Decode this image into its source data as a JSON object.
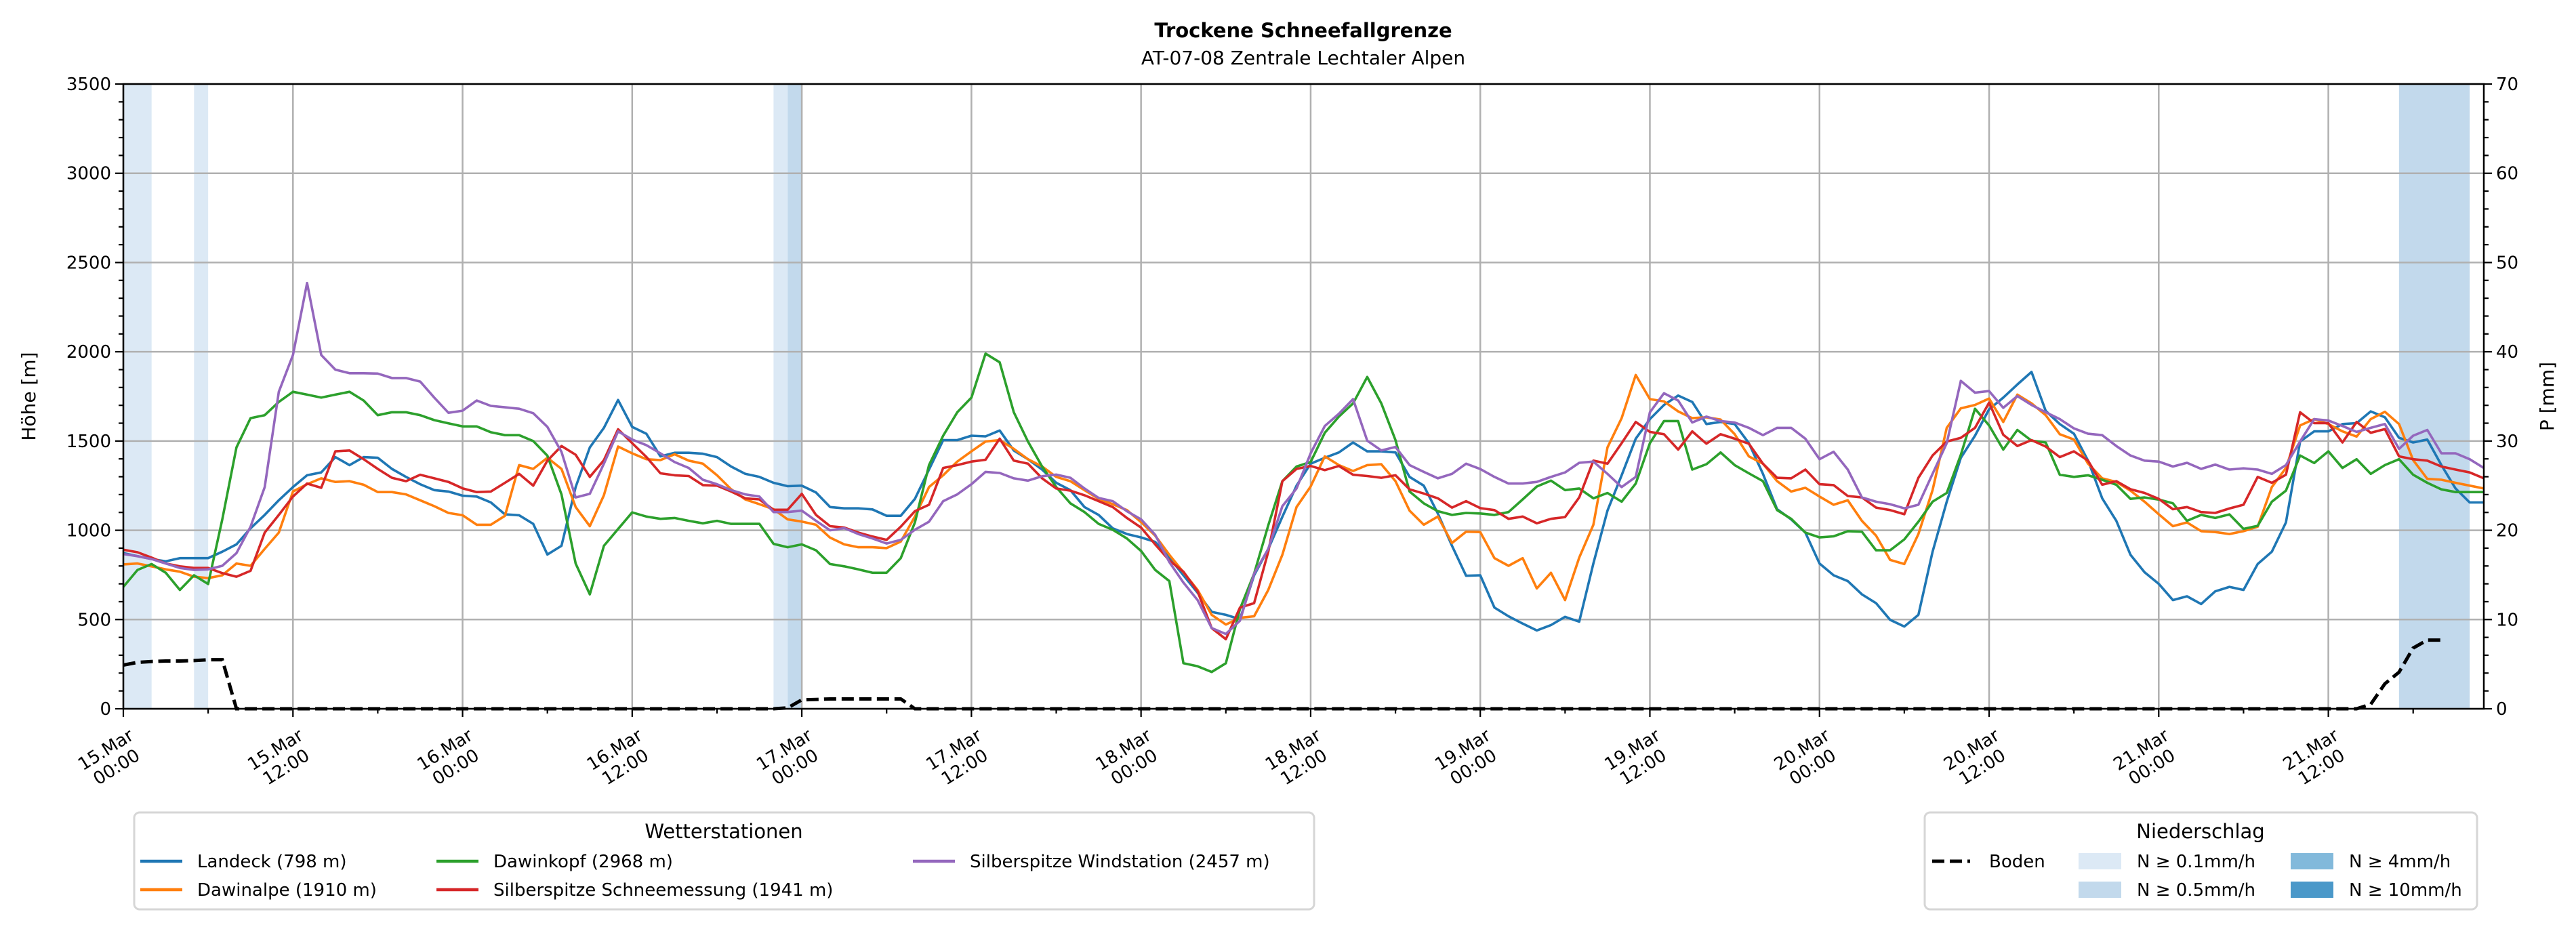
{
  "chart_data": {
    "type": "line",
    "title": "Trockene Schneefallgrenze",
    "subtitle": "AT-07-08 Zentrale Lechtaler Alpen",
    "ylabel": "Höhe [m]",
    "ylabel_right": "P [mm]",
    "x_start": "15.Mar 00:00",
    "x_step_hours": 1,
    "xlim_hours": [
      0,
      167
    ],
    "ylim": [
      0,
      3500
    ],
    "ylim_right": [
      0,
      70
    ],
    "grid": true,
    "yticks": [
      "0",
      "500",
      "1000",
      "1500",
      "2000",
      "2500",
      "3000",
      "3500"
    ],
    "yticks_right": [
      "0",
      "10",
      "20",
      "30",
      "40",
      "50",
      "60",
      "70"
    ],
    "xticks": [
      {
        "hour": 0,
        "day": "15.Mar",
        "time": "00:00"
      },
      {
        "hour": 12,
        "day": "15.Mar",
        "time": "12:00"
      },
      {
        "hour": 24,
        "day": "16.Mar",
        "time": "00:00"
      },
      {
        "hour": 36,
        "day": "16.Mar",
        "time": "12:00"
      },
      {
        "hour": 48,
        "day": "17.Mar",
        "time": "00:00"
      },
      {
        "hour": 60,
        "day": "17.Mar",
        "time": "12:00"
      },
      {
        "hour": 72,
        "day": "18.Mar",
        "time": "00:00"
      },
      {
        "hour": 84,
        "day": "18.Mar",
        "time": "12:00"
      },
      {
        "hour": 96,
        "day": "19.Mar",
        "time": "00:00"
      },
      {
        "hour": 108,
        "day": "19.Mar",
        "time": "12:00"
      },
      {
        "hour": 120,
        "day": "20.Mar",
        "time": "00:00"
      },
      {
        "hour": 132,
        "day": "20.Mar",
        "time": "12:00"
      },
      {
        "hour": 144,
        "day": "21.Mar",
        "time": "00:00"
      },
      {
        "hour": 156,
        "day": "21.Mar",
        "time": "12:00"
      }
    ],
    "series": [
      {
        "name": "Landeck (798 m)",
        "color": "#1f77b4",
        "values": [
          872,
          855,
          839,
          826,
          844,
          844,
          844,
          880,
          921,
          1011,
          1086,
          1168,
          1242,
          1308,
          1324,
          1410,
          1365,
          1410,
          1406,
          1344,
          1299,
          1258,
          1225,
          1217,
          1194,
          1189,
          1156,
          1089,
          1084,
          1036,
          864,
          913,
          1242,
          1464,
          1574,
          1730,
          1579,
          1541,
          1414,
          1434,
          1434,
          1429,
          1410,
          1357,
          1316,
          1299,
          1266,
          1247,
          1250,
          1212,
          1130,
          1123,
          1123,
          1117,
          1081,
          1081,
          1176,
          1340,
          1505,
          1505,
          1530,
          1526,
          1559,
          1447,
          1398,
          1340,
          1266,
          1225,
          1130,
          1086,
          1011,
          979,
          960,
          935,
          847,
          748,
          650,
          543,
          526,
          502,
          748,
          895,
          1076,
          1250,
          1373,
          1406,
          1436,
          1492,
          1442,
          1442,
          1436,
          1299,
          1250,
          1094,
          913,
          745,
          748,
          567,
          518,
          477,
          439,
          469,
          515,
          488,
          814,
          1110,
          1308,
          1513,
          1623,
          1702,
          1755,
          1719,
          1595,
          1607,
          1595,
          1488,
          1316,
          1118,
          1061,
          987,
          814,
          748,
          715,
          641,
          592,
          498,
          461,
          526,
          880,
          1160,
          1406,
          1530,
          1678,
          1743,
          1817,
          1887,
          1669,
          1595,
          1541,
          1390,
          1179,
          1053,
          863,
          765,
          700,
          609,
          630,
          587,
          658,
          683,
          666,
          811,
          880,
          1044,
          1497,
          1554,
          1554,
          1595,
          1600,
          1666,
          1633,
          1518,
          1492,
          1508,
          1365,
          1234,
          1156,
          1156
        ]
      },
      {
        "name": "Dawinalpe (1910 m)",
        "color": "#ff7f0e",
        "values": [
          809,
          814,
          798,
          781,
          768,
          740,
          732,
          748,
          814,
          801,
          896,
          987,
          1217,
          1258,
          1291,
          1271,
          1275,
          1255,
          1214,
          1214,
          1201,
          1168,
          1135,
          1097,
          1084,
          1031,
          1031,
          1081,
          1365,
          1344,
          1406,
          1344,
          1130,
          1023,
          1196,
          1469,
          1431,
          1398,
          1393,
          1426,
          1390,
          1373,
          1308,
          1230,
          1173,
          1146,
          1118,
          1061,
          1049,
          1031,
          959,
          921,
          905,
          905,
          900,
          937,
          1077,
          1242,
          1308,
          1385,
          1442,
          1497,
          1505,
          1456,
          1398,
          1357,
          1299,
          1275,
          1225,
          1176,
          1146,
          1113,
          1046,
          970,
          863,
          765,
          666,
          526,
          472,
          510,
          518,
          666,
          863,
          1130,
          1245,
          1414,
          1365,
          1332,
          1365,
          1370,
          1275,
          1110,
          1031,
          1077,
          929,
          992,
          990,
          844,
          801,
          844,
          674,
          762,
          609,
          847,
          1031,
          1464,
          1628,
          1870,
          1735,
          1722,
          1666,
          1628,
          1633,
          1620,
          1538,
          1414,
          1373,
          1275,
          1217,
          1238,
          1189,
          1143,
          1168,
          1053,
          970,
          834,
          811,
          979,
          1225,
          1574,
          1683,
          1702,
          1738,
          1607,
          1760,
          1711,
          1645,
          1538,
          1508,
          1373,
          1291,
          1271,
          1222,
          1160,
          1090,
          1023,
          1044,
          995,
          990,
          979,
          995,
          1020,
          1242,
          1349,
          1587,
          1623,
          1595,
          1554,
          1525,
          1623,
          1664,
          1595,
          1393,
          1288,
          1283,
          1266,
          1250,
          1234
        ]
      },
      {
        "name": "Dawinkopf (2968 m)",
        "color": "#2ca02c",
        "values": [
          683,
          778,
          811,
          762,
          666,
          748,
          699,
          1061,
          1464,
          1628,
          1645,
          1719,
          1776,
          1760,
          1743,
          1760,
          1776,
          1727,
          1645,
          1661,
          1661,
          1645,
          1617,
          1599,
          1582,
          1582,
          1549,
          1533,
          1533,
          1500,
          1418,
          1201,
          814,
          641,
          913,
          1007,
          1100,
          1077,
          1064,
          1069,
          1053,
          1039,
          1053,
          1036,
          1036,
          1036,
          924,
          905,
          921,
          888,
          811,
          798,
          781,
          762,
          762,
          844,
          1044,
          1365,
          1530,
          1661,
          1743,
          1990,
          1941,
          1661,
          1497,
          1357,
          1242,
          1151,
          1102,
          1036,
          1003,
          954,
          884,
          778,
          715,
          255,
          238,
          206,
          255,
          559,
          757,
          1028,
          1275,
          1357,
          1382,
          1546,
          1637,
          1711,
          1859,
          1711,
          1505,
          1217,
          1151,
          1107,
          1086,
          1097,
          1094,
          1086,
          1102,
          1173,
          1245,
          1278,
          1225,
          1234,
          1179,
          1209,
          1160,
          1262,
          1488,
          1612,
          1612,
          1340,
          1370,
          1436,
          1365,
          1319,
          1275,
          1113,
          1064,
          987,
          960,
          966,
          995,
          992,
          888,
          888,
          949,
          1048,
          1160,
          1209,
          1423,
          1681,
          1587,
          1452,
          1562,
          1502,
          1492,
          1311,
          1299,
          1308,
          1283,
          1255,
          1176,
          1184,
          1172,
          1151,
          1053,
          1086,
          1069,
          1089,
          1008,
          1025,
          1160,
          1222,
          1419,
          1377,
          1442,
          1349,
          1398,
          1316,
          1365,
          1398,
          1311,
          1266,
          1229,
          1214,
          1214,
          1214
        ]
      },
      {
        "name": "Silberspitze Schneemessung (1941 m)",
        "color": "#d62728",
        "values": [
          891,
          877,
          847,
          814,
          798,
          789,
          789,
          760,
          740,
          773,
          987,
          1086,
          1189,
          1262,
          1238,
          1442,
          1447,
          1398,
          1344,
          1294,
          1275,
          1311,
          1291,
          1271,
          1235,
          1214,
          1217,
          1266,
          1316,
          1250,
          1390,
          1472,
          1423,
          1299,
          1393,
          1566,
          1488,
          1411,
          1319,
          1308,
          1304,
          1253,
          1250,
          1217,
          1179,
          1173,
          1115,
          1115,
          1204,
          1086,
          1023,
          1015,
          987,
          965,
          946,
          1020,
          1107,
          1143,
          1349,
          1365,
          1385,
          1395,
          1513,
          1390,
          1373,
          1291,
          1234,
          1222,
          1196,
          1163,
          1130,
          1069,
          1015,
          921,
          831,
          768,
          658,
          452,
          390,
          567,
          592,
          880,
          1275,
          1344,
          1360,
          1337,
          1360,
          1311,
          1304,
          1294,
          1308,
          1229,
          1206,
          1179,
          1127,
          1163,
          1124,
          1113,
          1064,
          1077,
          1039,
          1064,
          1074,
          1184,
          1390,
          1373,
          1488,
          1607,
          1551,
          1538,
          1452,
          1554,
          1485,
          1538,
          1513,
          1485,
          1373,
          1294,
          1291,
          1340,
          1258,
          1253,
          1192,
          1184,
          1127,
          1113,
          1090,
          1294,
          1419,
          1497,
          1518,
          1574,
          1715,
          1535,
          1472,
          1505,
          1469,
          1410,
          1442,
          1390,
          1255,
          1275,
          1230,
          1209,
          1176,
          1118,
          1130,
          1102,
          1097,
          1122,
          1143,
          1299,
          1266,
          1311,
          1661,
          1600,
          1600,
          1492,
          1607,
          1546,
          1567,
          1414,
          1398,
          1390,
          1357,
          1340,
          1324,
          1291
        ]
      },
      {
        "name": "Silberspitze Windstation (2457 m)",
        "color": "#9467bd",
        "values": [
          867,
          855,
          839,
          814,
          789,
          778,
          781,
          801,
          872,
          1020,
          1242,
          1776,
          1982,
          2385,
          1982,
          1900,
          1880,
          1880,
          1878,
          1853,
          1853,
          1833,
          1743,
          1658,
          1670,
          1727,
          1697,
          1689,
          1681,
          1656,
          1579,
          1439,
          1184,
          1204,
          1373,
          1554,
          1508,
          1477,
          1431,
          1382,
          1349,
          1283,
          1258,
          1225,
          1201,
          1189,
          1102,
          1102,
          1110,
          1053,
          1000,
          1012,
          979,
          954,
          926,
          946,
          1003,
          1048,
          1163,
          1201,
          1258,
          1327,
          1321,
          1291,
          1278,
          1303,
          1312,
          1294,
          1234,
          1181,
          1163,
          1107,
          1061,
          975,
          822,
          707,
          609,
          452,
          419,
          493,
          757,
          896,
          1135,
          1234,
          1431,
          1584,
          1653,
          1735,
          1502,
          1447,
          1467,
          1365,
          1327,
          1291,
          1316,
          1373,
          1343,
          1299,
          1262,
          1262,
          1271,
          1299,
          1324,
          1378,
          1385,
          1316,
          1242,
          1299,
          1661,
          1768,
          1727,
          1604,
          1637,
          1612,
          1604,
          1574,
          1533,
          1574,
          1574,
          1513,
          1398,
          1440,
          1340,
          1184,
          1160,
          1146,
          1123,
          1143,
          1316,
          1488,
          1837,
          1771,
          1780,
          1686,
          1752,
          1702,
          1661,
          1623,
          1571,
          1541,
          1533,
          1472,
          1419,
          1390,
          1385,
          1357,
          1378,
          1344,
          1368,
          1340,
          1347,
          1340,
          1316,
          1365,
          1497,
          1623,
          1615,
          1584,
          1551,
          1574,
          1595,
          1456,
          1530,
          1562,
          1431,
          1431,
          1398,
          1349
        ]
      }
    ],
    "ground": {
      "name": "Boden",
      "axis": "right",
      "color": "#000000",
      "values": [
        4.9,
        5.2,
        5.3,
        5.35,
        5.35,
        5.4,
        5.5,
        5.5,
        0,
        0,
        0,
        0,
        0,
        0,
        0,
        0,
        0,
        0,
        0,
        0,
        0,
        0,
        0,
        0,
        0,
        0,
        0,
        0,
        0,
        0,
        0,
        0,
        0,
        0,
        0,
        0,
        0,
        0,
        0,
        0,
        0,
        0,
        0,
        0,
        0,
        0,
        0,
        0.1,
        1.0,
        1.05,
        1.1,
        1.1,
        1.1,
        1.1,
        1.1,
        1.1,
        0,
        0,
        0,
        0,
        0,
        0,
        0,
        0,
        0,
        0,
        0,
        0,
        0,
        0,
        0,
        0,
        0,
        0,
        0,
        0,
        0,
        0,
        0,
        0,
        0,
        0,
        0,
        0,
        0,
        0,
        0,
        0,
        0,
        0,
        0,
        0,
        0,
        0,
        0,
        0,
        0,
        0,
        0,
        0,
        0,
        0,
        0,
        0,
        0,
        0,
        0,
        0,
        0,
        0,
        0,
        0,
        0,
        0,
        0,
        0,
        0,
        0,
        0,
        0,
        0,
        0,
        0,
        0,
        0,
        0,
        0,
        0,
        0,
        0,
        0,
        0,
        0,
        0,
        0,
        0,
        0,
        0,
        0,
        0,
        0,
        0,
        0,
        0,
        0,
        0,
        0,
        0,
        0,
        0,
        0,
        0,
        0,
        0,
        0,
        0,
        0,
        0,
        0,
        0.5,
        2.8,
        4.1,
        6.8,
        7.7,
        7.7
      ]
    },
    "precip_bands": [
      {
        "start_hour": 0,
        "end_hour": 2,
        "level": "N ≥ 0.1mm/h"
      },
      {
        "start_hour": 5,
        "end_hour": 6,
        "level": "N ≥ 0.1mm/h"
      },
      {
        "start_hour": 46,
        "end_hour": 47,
        "level": "N ≥ 0.1mm/h"
      },
      {
        "start_hour": 47,
        "end_hour": 48,
        "level": "N ≥ 0.5mm/h"
      },
      {
        "start_hour": 161,
        "end_hour": 166,
        "level": "N ≥ 0.5mm/h"
      }
    ],
    "precip_levels": [
      {
        "label": "N ≥ 0.1mm/h",
        "color": "#dce9f5"
      },
      {
        "label": "N ≥ 0.5mm/h",
        "color": "#c2d9ec"
      },
      {
        "label": "N ≥ 4mm/h",
        "color": "#82b9db"
      },
      {
        "label": "N ≥ 10mm/h",
        "color": "#4a98c9"
      }
    ],
    "legend_stations": {
      "title": "Wetterstationen",
      "placement": "bottom-left"
    },
    "legend_precip": {
      "title": "Niederschlag",
      "placement": "bottom-right"
    }
  }
}
